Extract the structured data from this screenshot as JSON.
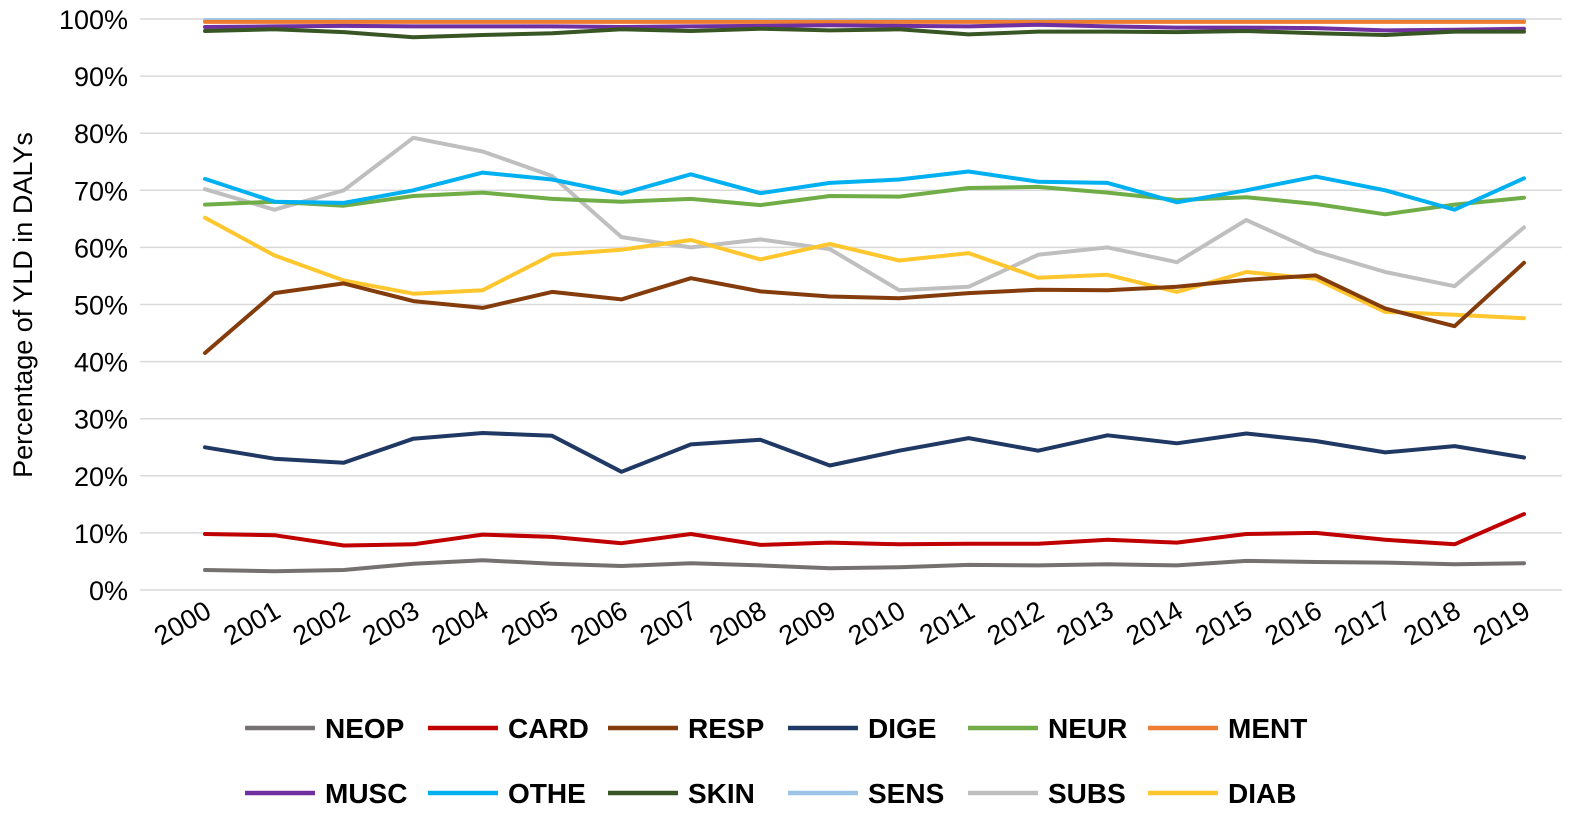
{
  "chart_data": {
    "type": "line",
    "title": "",
    "xlabel": "",
    "ylabel": "Percentage of YLD in DALYs",
    "ylim": [
      0,
      100
    ],
    "yticks": [
      "0%",
      "10%",
      "20%",
      "30%",
      "40%",
      "50%",
      "60%",
      "70%",
      "80%",
      "90%",
      "100%"
    ],
    "x": [
      "2000",
      "2001",
      "2002",
      "2003",
      "2004",
      "2005",
      "2006",
      "2007",
      "2008",
      "2009",
      "2010",
      "2011",
      "2012",
      "2013",
      "2014",
      "2015",
      "2016",
      "2017",
      "2018",
      "2019"
    ],
    "legend_position": "bottom",
    "series": [
      {
        "name": "NEOP",
        "color": "#767171",
        "values": [
          3.5,
          3.3,
          3.5,
          4.6,
          5.2,
          4.6,
          4.2,
          4.7,
          4.3,
          3.8,
          4.0,
          4.4,
          4.3,
          4.5,
          4.3,
          5.1,
          4.9,
          4.8,
          4.5,
          4.7
        ]
      },
      {
        "name": "CARD",
        "color": "#C00000",
        "values": [
          9.8,
          9.6,
          7.8,
          8.0,
          9.7,
          9.3,
          8.2,
          9.8,
          7.9,
          8.3,
          8.0,
          8.1,
          8.1,
          8.8,
          8.3,
          9.8,
          10.0,
          8.8,
          8.0,
          13.3
        ]
      },
      {
        "name": "RESP",
        "color": "#843C0C",
        "values": [
          41.5,
          52.0,
          53.7,
          50.6,
          49.4,
          52.2,
          50.9,
          54.6,
          52.3,
          51.4,
          51.1,
          52.0,
          52.6,
          52.5,
          53.1,
          54.3,
          55.1,
          49.3,
          46.2,
          57.3
        ]
      },
      {
        "name": "DIGE",
        "color": "#203864",
        "values": [
          25.0,
          23.0,
          22.3,
          26.5,
          27.5,
          27.0,
          20.7,
          25.5,
          26.3,
          21.8,
          24.4,
          26.6,
          24.4,
          27.1,
          25.7,
          27.4,
          26.1,
          24.1,
          25.2,
          23.2
        ]
      },
      {
        "name": "NEUR",
        "color": "#70AD47",
        "values": [
          67.5,
          68.0,
          67.3,
          69.0,
          69.6,
          68.5,
          68.0,
          68.5,
          67.4,
          69.0,
          68.9,
          70.4,
          70.6,
          69.6,
          68.3,
          68.8,
          67.6,
          65.8,
          67.5,
          68.7
        ]
      },
      {
        "name": "MENT",
        "color": "#ED7D31",
        "values": [
          99.5,
          99.5,
          99.5,
          99.5,
          99.5,
          99.5,
          99.5,
          99.5,
          99.5,
          99.5,
          99.5,
          99.5,
          99.5,
          99.5,
          99.5,
          99.5,
          99.5,
          99.5,
          99.5,
          99.5
        ]
      },
      {
        "name": "MUSC",
        "color": "#7030A0",
        "values": [
          98.6,
          98.7,
          98.8,
          98.7,
          98.7,
          98.7,
          98.6,
          98.7,
          98.8,
          98.9,
          98.8,
          98.7,
          99.0,
          98.7,
          98.5,
          98.5,
          98.4,
          98.0,
          98.1,
          98.3
        ]
      },
      {
        "name": "OTHE",
        "color": "#00B0F0",
        "values": [
          72.0,
          68.0,
          67.8,
          70.0,
          73.1,
          71.9,
          69.4,
          72.8,
          69.5,
          71.3,
          71.9,
          73.3,
          71.5,
          71.3,
          67.9,
          70.0,
          72.4,
          70.0,
          66.6,
          72.1
        ]
      },
      {
        "name": "SKIN",
        "color": "#375623",
        "values": [
          97.9,
          98.2,
          97.7,
          96.8,
          97.2,
          97.5,
          98.2,
          97.9,
          98.3,
          98.0,
          98.2,
          97.3,
          97.8,
          97.8,
          97.7,
          97.9,
          97.5,
          97.2,
          97.8,
          97.8
        ]
      },
      {
        "name": "SENS",
        "color": "#9DC3E6",
        "values": [
          99.8,
          99.8,
          99.8,
          99.8,
          99.8,
          99.8,
          99.8,
          99.8,
          99.8,
          99.8,
          99.8,
          99.8,
          99.8,
          99.8,
          99.8,
          99.8,
          99.8,
          99.8,
          99.8,
          99.8
        ]
      },
      {
        "name": "SUBS",
        "color": "#BFBFBF",
        "values": [
          70.2,
          66.6,
          70.0,
          79.2,
          76.8,
          72.5,
          61.8,
          60.0,
          61.4,
          59.7,
          52.5,
          53.1,
          58.7,
          60.0,
          57.4,
          64.8,
          59.3,
          55.7,
          53.2,
          63.5
        ]
      },
      {
        "name": "DIAB",
        "color": "#FFC62E",
        "values": [
          65.2,
          58.6,
          54.2,
          51.9,
          52.5,
          58.7,
          59.6,
          61.3,
          57.9,
          60.6,
          57.7,
          59.0,
          54.7,
          55.2,
          52.2,
          55.7,
          54.5,
          48.7,
          48.2,
          47.6
        ]
      }
    ]
  }
}
